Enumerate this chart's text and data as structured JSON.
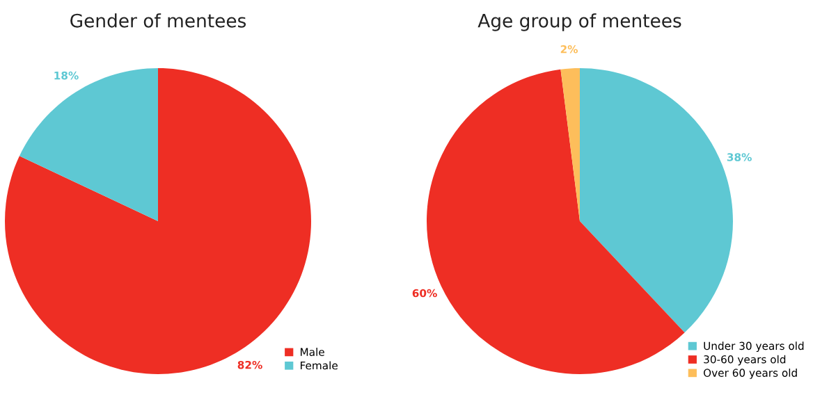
{
  "chart_data": [
    {
      "type": "pie",
      "title": "Gender of mentees",
      "categories": [
        "Male",
        "Female"
      ],
      "values": [
        82,
        18
      ],
      "colors": [
        "#ee2e24",
        "#5ec8d3"
      ],
      "value_labels": [
        "82%",
        "18%"
      ],
      "legend": "bottom right"
    },
    {
      "type": "pie",
      "title": "Age group of mentees",
      "categories": [
        "Under 30 years old",
        "30-60 years old",
        "Over 60 years old"
      ],
      "values": [
        38,
        60,
        2
      ],
      "colors": [
        "#5ec8d3",
        "#ee2e24",
        "#fdbe5b"
      ],
      "value_labels": [
        "38%",
        "60%",
        "2%"
      ],
      "legend": "bottom right"
    }
  ]
}
